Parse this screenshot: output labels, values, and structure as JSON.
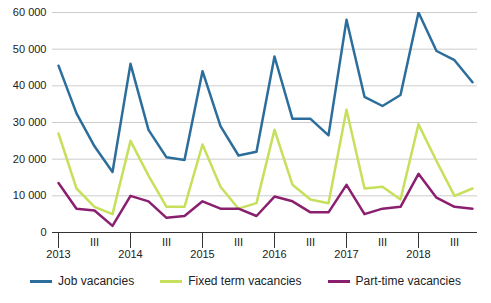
{
  "chart_data": {
    "type": "line",
    "categories": [
      "2013",
      null,
      "III",
      null,
      "2014",
      null,
      "III",
      null,
      "2015",
      null,
      "III",
      null,
      "2016",
      null,
      "III",
      null,
      "2017",
      null,
      "III",
      null,
      "2018",
      null,
      "III",
      null
    ],
    "series": [
      {
        "name": "Job vacancies",
        "color": "#2c6e9b",
        "values": [
          45500,
          32500,
          23500,
          16500,
          46000,
          28000,
          20500,
          19800,
          44000,
          29000,
          21000,
          22000,
          48000,
          31000,
          31000,
          26500,
          58000,
          37000,
          34500,
          37500,
          60000,
          49500,
          47000,
          41000
        ]
      },
      {
        "name": "Fixed term vacancies",
        "color": "#c6e05c",
        "values": [
          27000,
          12000,
          7000,
          5000,
          25000,
          15500,
          7000,
          7000,
          24000,
          12500,
          6500,
          8000,
          28000,
          13000,
          9000,
          8000,
          33500,
          12000,
          12500,
          9000,
          29500,
          19500,
          10000,
          12000
        ]
      },
      {
        "name": "Part-time vacancies",
        "color": "#8b1f6f",
        "values": [
          13500,
          6500,
          6000,
          1800,
          10000,
          8500,
          4000,
          4500,
          8500,
          6500,
          6500,
          4500,
          9800,
          8500,
          5500,
          5500,
          13000,
          5000,
          6500,
          7000,
          16000,
          9500,
          7000,
          6500
        ]
      }
    ],
    "ylim": [
      0,
      60000
    ],
    "yticks": [
      0,
      {
        "value": 10000,
        "label": "10 000"
      },
      {
        "value": 20000,
        "label": "20 000"
      },
      {
        "value": 30000,
        "label": "30 000"
      },
      {
        "value": 40000,
        "label": "40 000"
      },
      {
        "value": 50000,
        "label": "50 000"
      },
      {
        "value": 60000,
        "label": "60 000"
      }
    ],
    "grid": true,
    "legend": "bottom"
  }
}
